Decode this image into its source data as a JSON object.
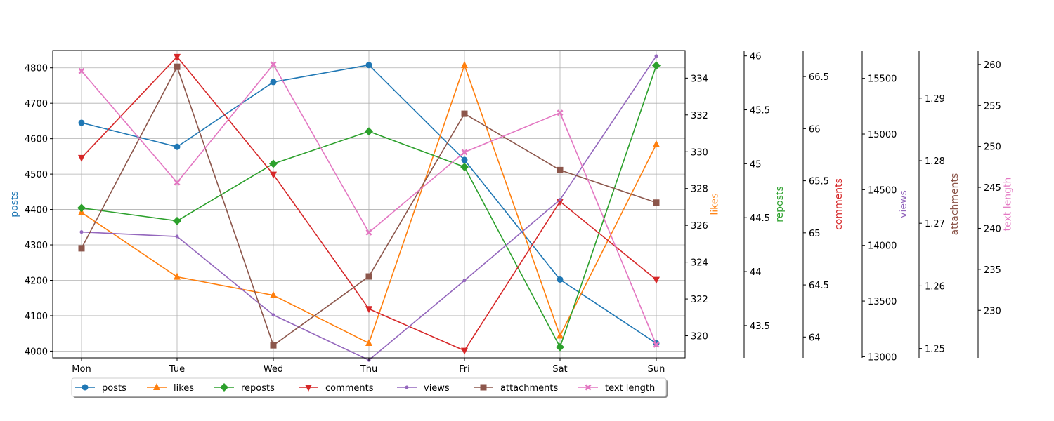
{
  "chart_data": {
    "type": "line",
    "categories": [
      "Mon",
      "Tue",
      "Wed",
      "Thu",
      "Fri",
      "Sat",
      "Sun"
    ],
    "series": [
      {
        "key": "posts",
        "name": "posts",
        "color": "#1f77b4",
        "marker": "circle",
        "values": [
          4645,
          4577,
          4760,
          4808,
          4540,
          4202,
          4022
        ],
        "axis": {
          "label": "posts",
          "side": "left",
          "range": [
            3981,
            4849
          ],
          "ticks": [
            "4000",
            "4100",
            "4200",
            "4300",
            "4400",
            "4500",
            "4600",
            "4700",
            "4800"
          ]
        }
      },
      {
        "key": "likes",
        "name": "likes",
        "color": "#ff7f0e",
        "marker": "triangle-up",
        "values": [
          326.7,
          323.2,
          322.2,
          319.6,
          334.7,
          320,
          330.4
        ],
        "axis": {
          "label": "likes",
          "side": "right",
          "range": [
            318.8,
            335.5
          ],
          "ticks": [
            "320",
            "322",
            "324",
            "326",
            "328",
            "330",
            "332",
            "334"
          ]
        }
      },
      {
        "key": "reposts",
        "name": "reposts",
        "color": "#2ca02c",
        "marker": "diamond",
        "values": [
          44.59,
          44.47,
          45.0,
          45.3,
          44.97,
          43.3,
          45.91
        ],
        "axis": {
          "label": "reposts",
          "side": "right",
          "range": [
            43.2,
            46.05
          ],
          "ticks": [
            "43.5",
            "44",
            "44.5",
            "45",
            "45.5",
            "46"
          ]
        }
      },
      {
        "key": "comments",
        "name": "comments",
        "color": "#d62728",
        "marker": "triangle-down",
        "values": [
          65.72,
          66.69,
          65.56,
          64.27,
          63.87,
          65.3,
          64.55
        ],
        "axis": {
          "label": "comments",
          "side": "right",
          "range": [
            63.8,
            66.75
          ],
          "ticks": [
            "64",
            "64.5",
            "65",
            "65.5",
            "66",
            "66.5"
          ]
        }
      },
      {
        "key": "views",
        "name": "views",
        "color": "#9467bd",
        "marker": "point",
        "values": [
          14120,
          14080,
          13375,
          12970,
          13685,
          14410,
          15700
        ],
        "axis": {
          "label": "views",
          "side": "right",
          "range": [
            12990,
            15750
          ],
          "ticks": [
            "13000",
            "13500",
            "14000",
            "14500",
            "15000",
            "15500"
          ]
        }
      },
      {
        "key": "attachments",
        "name": "attachments",
        "color": "#8c564b",
        "marker": "square",
        "values": [
          1.266,
          1.295,
          1.2505,
          1.2615,
          1.2875,
          1.2785,
          1.2733
        ],
        "axis": {
          "label": "attachments",
          "side": "right",
          "range": [
            1.2485,
            1.2976
          ],
          "ticks": [
            "1.25",
            "1.26",
            "1.27",
            "1.28",
            "1.29"
          ]
        }
      },
      {
        "key": "text_length",
        "name": "text length",
        "color": "#e377c2",
        "marker": "x",
        "values": [
          259.2,
          245.6,
          260,
          239.5,
          249.3,
          254.1,
          225.8
        ],
        "axis": {
          "label": "text length",
          "side": "right",
          "range": [
            224.2,
            261.7
          ],
          "ticks": [
            "230",
            "235",
            "240",
            "245",
            "250",
            "255",
            "260"
          ]
        }
      }
    ],
    "grid": true,
    "legend_position": "bottom-left"
  }
}
